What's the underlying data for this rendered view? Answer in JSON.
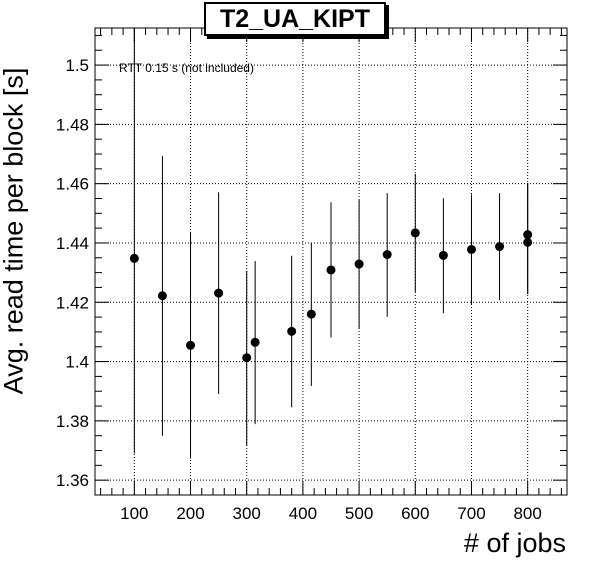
{
  "chart_data": {
    "type": "scatter",
    "title": "T2_UA_KIPT",
    "xlabel": "# of jobs",
    "ylabel": "Avg. read time per block [s]",
    "annotation": "RTT 0.15 s (not included)",
    "xlim": [
      30,
      870
    ],
    "ylim": [
      1.355,
      1.5125
    ],
    "xticks": [
      100,
      200,
      300,
      400,
      500,
      600,
      700,
      800
    ],
    "yticks": [
      1.36,
      1.38,
      1.4,
      1.42,
      1.44,
      1.46,
      1.48,
      1.5
    ],
    "ytick_labels": [
      "1.36",
      "1.38",
      "1.4",
      "1.42",
      "1.44",
      "1.46",
      "1.48",
      "1.5"
    ],
    "grid": true,
    "points": [
      {
        "x": 100,
        "y": 1.4348,
        "ylow": 1.369,
        "yhigh": 1.5125
      },
      {
        "x": 150,
        "y": 1.4222,
        "ylow": 1.375,
        "yhigh": 1.4693
      },
      {
        "x": 200,
        "y": 1.4055,
        "ylow": 1.3673,
        "yhigh": 1.4438
      },
      {
        "x": 250,
        "y": 1.4231,
        "ylow": 1.3891,
        "yhigh": 1.4571
      },
      {
        "x": 300,
        "y": 1.4013,
        "ylow": 1.3717,
        "yhigh": 1.4306
      },
      {
        "x": 315,
        "y": 1.4065,
        "ylow": 1.3789,
        "yhigh": 1.4339
      },
      {
        "x": 380,
        "y": 1.4102,
        "ylow": 1.3846,
        "yhigh": 1.4357
      },
      {
        "x": 415,
        "y": 1.416,
        "ylow": 1.3918,
        "yhigh": 1.4401
      },
      {
        "x": 450,
        "y": 1.4309,
        "ylow": 1.4081,
        "yhigh": 1.4537
      },
      {
        "x": 500,
        "y": 1.4329,
        "ylow": 1.4112,
        "yhigh": 1.4545
      },
      {
        "x": 550,
        "y": 1.4361,
        "ylow": 1.4151,
        "yhigh": 1.4568
      },
      {
        "x": 600,
        "y": 1.4434,
        "ylow": 1.4235,
        "yhigh": 1.4633
      },
      {
        "x": 650,
        "y": 1.4358,
        "ylow": 1.4163,
        "yhigh": 1.4551
      },
      {
        "x": 700,
        "y": 1.4378,
        "ylow": 1.4192,
        "yhigh": 1.4564
      },
      {
        "x": 750,
        "y": 1.4388,
        "ylow": 1.4207,
        "yhigh": 1.4568
      },
      {
        "x": 800,
        "y": 1.4402,
        "ylow": 1.4228,
        "yhigh": 1.4602
      },
      {
        "x": 800,
        "y": 1.4428,
        "ylow": 1.4228,
        "yhigh": 1.4602
      }
    ]
  }
}
